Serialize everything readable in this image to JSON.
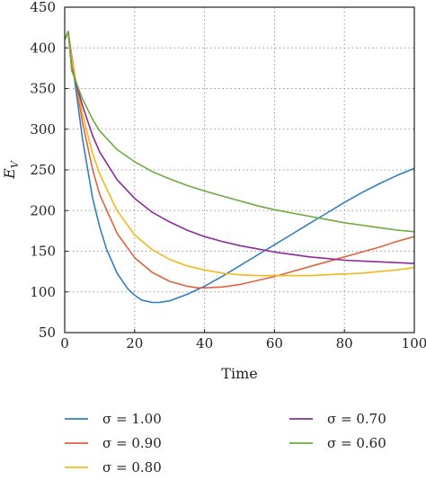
{
  "chart_data": {
    "type": "line",
    "xlabel": "Time",
    "ylabel": "E",
    "ylabel_sub": "V",
    "xlim": [
      0,
      100
    ],
    "ylim": [
      50,
      450
    ],
    "x_ticks": [
      "0",
      "20",
      "40",
      "60",
      "80",
      "100"
    ],
    "y_ticks": [
      "50",
      "100",
      "150",
      "200",
      "250",
      "300",
      "350",
      "400",
      "450"
    ],
    "grid": "dotted",
    "legend_placement": "bottom",
    "series": [
      {
        "name": "σ = 1.00",
        "color": "#2f7fc1",
        "x": [
          0,
          1,
          2,
          5,
          8,
          10,
          12,
          15,
          18,
          20,
          22,
          25,
          27,
          30,
          35,
          40,
          45,
          50,
          55,
          60,
          65,
          70,
          75,
          80,
          85,
          90,
          95,
          100
        ],
        "y": [
          410,
          420,
          388,
          290,
          215,
          180,
          152,
          123,
          104,
          96,
          90,
          87,
          87,
          89,
          97,
          107,
          119,
          132,
          145,
          158,
          171,
          184,
          197,
          210,
          222,
          233,
          243,
          252
        ]
      },
      {
        "name": "σ = 0.90",
        "color": "#e0633c",
        "x": [
          0,
          1,
          2,
          5,
          8,
          10,
          15,
          20,
          25,
          30,
          35,
          38,
          40,
          45,
          50,
          55,
          60,
          65,
          70,
          75,
          80,
          85,
          90,
          95,
          100
        ],
        "y": [
          410,
          420,
          390,
          310,
          250,
          220,
          172,
          142,
          124,
          113,
          107,
          105,
          105,
          106,
          109,
          114,
          119,
          125,
          131,
          137,
          143,
          149,
          155,
          162,
          168
        ]
      },
      {
        "name": "σ = 0.80",
        "color": "#f2b91a",
        "x": [
          0,
          1,
          2,
          5,
          8,
          10,
          15,
          20,
          25,
          30,
          35,
          40,
          45,
          50,
          55,
          60,
          65,
          70,
          75,
          80,
          85,
          90,
          95,
          100
        ],
        "y": [
          410,
          420,
          385,
          320,
          270,
          245,
          200,
          170,
          152,
          140,
          132,
          127,
          123,
          121,
          120,
          120,
          120,
          120,
          121,
          122,
          123,
          125,
          127,
          130
        ]
      },
      {
        "name": "σ = 0.70",
        "color": "#8c2b9e",
        "x": [
          0,
          1,
          2,
          5,
          8,
          10,
          15,
          20,
          25,
          30,
          35,
          40,
          45,
          50,
          55,
          60,
          65,
          70,
          75,
          80,
          85,
          90,
          95,
          100
        ],
        "y": [
          410,
          420,
          375,
          330,
          292,
          272,
          238,
          215,
          198,
          186,
          176,
          168,
          162,
          157,
          153,
          149,
          146,
          143,
          141,
          139,
          138,
          137,
          136,
          135
        ]
      },
      {
        "name": "σ = 0.60",
        "color": "#6cab3e",
        "x": [
          0,
          1,
          2,
          5,
          8,
          10,
          15,
          20,
          25,
          30,
          35,
          40,
          45,
          50,
          55,
          60,
          65,
          70,
          75,
          80,
          85,
          90,
          95,
          100
        ],
        "y": [
          410,
          420,
          372,
          338,
          312,
          298,
          275,
          260,
          248,
          239,
          231,
          224,
          218,
          212,
          206,
          201,
          197,
          193,
          189,
          185,
          182,
          179,
          176,
          174
        ]
      }
    ]
  }
}
